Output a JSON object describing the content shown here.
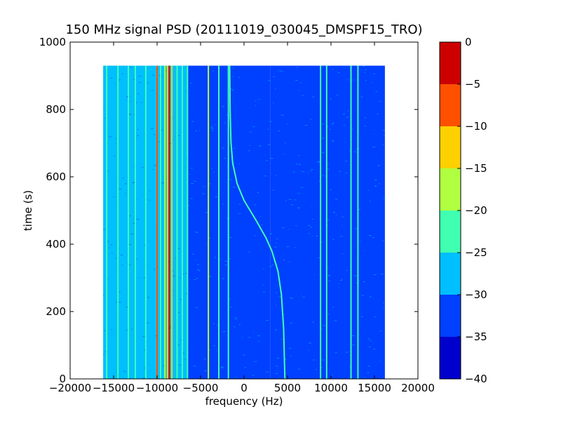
{
  "chart_data": {
    "type": "heatmap",
    "title": "150 MHz signal PSD (20111019_030045_DMSPF15_TRO)",
    "xlabel": "frequency (Hz)",
    "ylabel": "time (s)",
    "xlim": [
      -20000,
      20000
    ],
    "ylim": [
      0,
      1000
    ],
    "xticks": [
      "−20000",
      "−15000",
      "−10000",
      "−5000",
      "0",
      "5000",
      "10000",
      "15000",
      "20000"
    ],
    "xtick_values": [
      -20000,
      -15000,
      -10000,
      -5000,
      0,
      5000,
      10000,
      15000,
      20000
    ],
    "yticks": [
      "0",
      "200",
      "400",
      "600",
      "800",
      "1000"
    ],
    "ytick_values": [
      0,
      200,
      400,
      600,
      800,
      1000
    ],
    "data_extent": {
      "frequency_hz": [
        -16200,
        16200
      ],
      "time_s": [
        0,
        930
      ]
    },
    "colorbar": {
      "levels": [
        -40,
        -35,
        -30,
        -25,
        -20,
        -15,
        -10,
        -5,
        0
      ],
      "tick_labels": [
        "−40",
        "−35",
        "−30",
        "−25",
        "−20",
        "−15",
        "−10",
        "−5",
        "0"
      ],
      "colors": [
        "#0000cd",
        "#0040ff",
        "#00bfff",
        "#40ffb0",
        "#b0ff40",
        "#ffd000",
        "#ff5000",
        "#cd0000"
      ]
    },
    "background_regions": [
      {
        "from_hz": -16200,
        "to_hz": -6500,
        "level_db": -30
      },
      {
        "from_hz": -6500,
        "to_hz": 3000,
        "level_db": -31
      },
      {
        "from_hz": 3000,
        "to_hz": 16200,
        "level_db": -34
      }
    ],
    "constant_lines": [
      {
        "freq_hz": -15800,
        "level_db": -25
      },
      {
        "freq_hz": -14500,
        "level_db": -25
      },
      {
        "freq_hz": -13300,
        "level_db": -22
      },
      {
        "freq_hz": -12500,
        "level_db": -25
      },
      {
        "freq_hz": -11300,
        "level_db": -22
      },
      {
        "freq_hz": -10000,
        "level_db": -10
      },
      {
        "freq_hz": -9600,
        "level_db": -25
      },
      {
        "freq_hz": -9100,
        "level_db": -20
      },
      {
        "freq_hz": -8800,
        "level_db": -15
      },
      {
        "freq_hz": -8600,
        "level_db": -5
      },
      {
        "freq_hz": -8300,
        "level_db": -12
      },
      {
        "freq_hz": -7700,
        "level_db": -22
      },
      {
        "freq_hz": -7100,
        "level_db": -25
      },
      {
        "freq_hz": -6500,
        "level_db": -25
      },
      {
        "freq_hz": -4100,
        "level_db": -18
      },
      {
        "freq_hz": -2900,
        "level_db": -25
      },
      {
        "freq_hz": -1800,
        "level_db": -25
      },
      {
        "freq_hz": 8800,
        "level_db": -25
      },
      {
        "freq_hz": 9500,
        "level_db": -25
      },
      {
        "freq_hz": 12300,
        "level_db": -25
      },
      {
        "freq_hz": 13100,
        "level_db": -25
      }
    ],
    "doppler_trace": {
      "level_db": -22,
      "points": [
        {
          "time_s": 0,
          "freq_hz": 4700
        },
        {
          "time_s": 150,
          "freq_hz": 4550
        },
        {
          "time_s": 250,
          "freq_hz": 4300
        },
        {
          "time_s": 320,
          "freq_hz": 3900
        },
        {
          "time_s": 380,
          "freq_hz": 3200
        },
        {
          "time_s": 420,
          "freq_hz": 2500
        },
        {
          "time_s": 470,
          "freq_hz": 1400
        },
        {
          "time_s": 500,
          "freq_hz": 700
        },
        {
          "time_s": 530,
          "freq_hz": 0
        },
        {
          "time_s": 580,
          "freq_hz": -800
        },
        {
          "time_s": 640,
          "freq_hz": -1300
        },
        {
          "time_s": 700,
          "freq_hz": -1500
        },
        {
          "time_s": 800,
          "freq_hz": -1600
        },
        {
          "time_s": 930,
          "freq_hz": -1650
        }
      ]
    }
  }
}
